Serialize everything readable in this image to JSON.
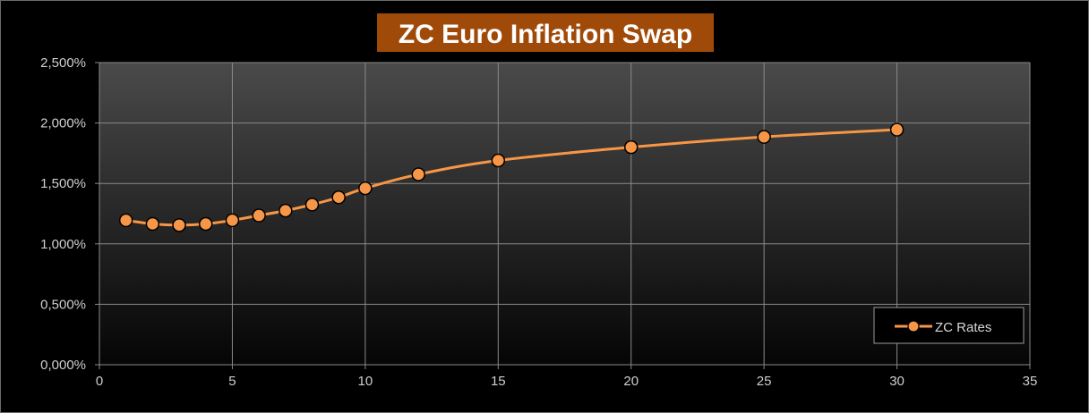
{
  "chart_data": {
    "type": "line",
    "title": "ZC Euro Inflation Swap",
    "xlabel": "",
    "ylabel": "",
    "xlim": [
      0,
      35
    ],
    "ylim": [
      0,
      2.5
    ],
    "x_ticks": [
      "0",
      "5",
      "10",
      "15",
      "20",
      "25",
      "30",
      "35"
    ],
    "x_tick_values": [
      0,
      5,
      10,
      15,
      20,
      25,
      30,
      35
    ],
    "y_ticks": [
      "0,000%",
      "0,500%",
      "1,000%",
      "1,500%",
      "2,000%",
      "2,500%"
    ],
    "y_tick_values": [
      0,
      0.5,
      1.0,
      1.5,
      2.0,
      2.5
    ],
    "grid": true,
    "legend_position": "bottom-right",
    "series": [
      {
        "name": "ZC Rates",
        "color": "#f79646",
        "x": [
          1,
          2,
          3,
          4,
          5,
          6,
          7,
          8,
          9,
          10,
          12,
          15,
          20,
          25,
          30
        ],
        "values": [
          1.195,
          1.165,
          1.155,
          1.165,
          1.195,
          1.235,
          1.275,
          1.325,
          1.385,
          1.46,
          1.575,
          1.69,
          1.8,
          1.885,
          1.945
        ]
      }
    ]
  }
}
